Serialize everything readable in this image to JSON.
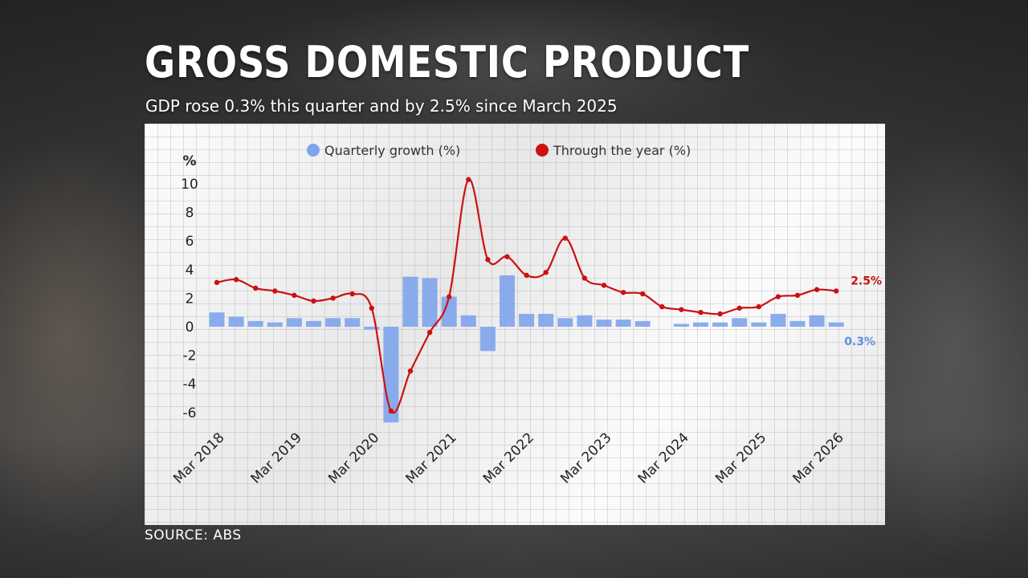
{
  "title": "GROSS DOMESTIC PRODUCT",
  "subtitle": "GDP rose 0.3% this quarter and by 2.5% since March 2025",
  "source": "SOURCE: ABS",
  "colors": {
    "quarterly": "#7ea4ec",
    "through_year": "#cc1111",
    "quarterly_label": "#5b8fe6"
  },
  "chart_data": {
    "type": "bar",
    "ylabel": "%",
    "ylim": [
      -7,
      10.5
    ],
    "yticks": [
      10,
      8,
      6,
      4,
      2,
      0,
      -2,
      -4,
      -6
    ],
    "grid": true,
    "legend_position": "top",
    "x_tick_labels": [
      "Mar 2018",
      "Mar 2019",
      "Mar 2020",
      "Mar 2021",
      "Mar 2022",
      "Mar 2023",
      "Mar 2024",
      "Mar 2025",
      "Mar 2026"
    ],
    "categories": [
      "Mar 2018",
      "Jun 2018",
      "Sep 2018",
      "Dec 2018",
      "Mar 2019",
      "Jun 2019",
      "Sep 2019",
      "Dec 2019",
      "Mar 2020",
      "Jun 2020",
      "Sep 2020",
      "Dec 2020",
      "Mar 2021",
      "Jun 2021",
      "Sep 2021",
      "Dec 2021",
      "Mar 2022",
      "Jun 2022",
      "Sep 2022",
      "Dec 2022",
      "Mar 2023",
      "Jun 2023",
      "Sep 2023",
      "Dec 2023",
      "Mar 2024",
      "Jun 2024",
      "Sep 2024",
      "Dec 2024",
      "Mar 2025",
      "Jun 2025",
      "Sep 2025",
      "Dec 2025",
      "Mar 2026"
    ],
    "series": [
      {
        "name": "Quarterly growth (%)",
        "type": "bar",
        "values": [
          1.0,
          0.7,
          0.4,
          0.3,
          0.6,
          0.4,
          0.6,
          0.6,
          -0.2,
          -6.7,
          3.5,
          3.4,
          2.1,
          0.8,
          -1.7,
          3.6,
          0.9,
          0.9,
          0.6,
          0.8,
          0.5,
          0.5,
          0.4,
          0.0,
          0.2,
          0.3,
          0.3,
          0.6,
          0.3,
          0.9,
          0.4,
          0.8,
          0.3
        ],
        "end_label": "0.3%"
      },
      {
        "name": "Through the year (%)",
        "type": "line",
        "values": [
          3.1,
          3.3,
          2.7,
          2.5,
          2.2,
          1.8,
          2.0,
          2.3,
          1.3,
          -5.9,
          -3.1,
          -0.4,
          2.1,
          10.3,
          4.7,
          4.9,
          3.6,
          3.8,
          6.2,
          3.4,
          2.9,
          2.4,
          2.3,
          1.4,
          1.2,
          1.0,
          0.9,
          1.3,
          1.4,
          2.1,
          2.2,
          2.6,
          2.5
        ],
        "end_label": "2.5%"
      }
    ]
  }
}
